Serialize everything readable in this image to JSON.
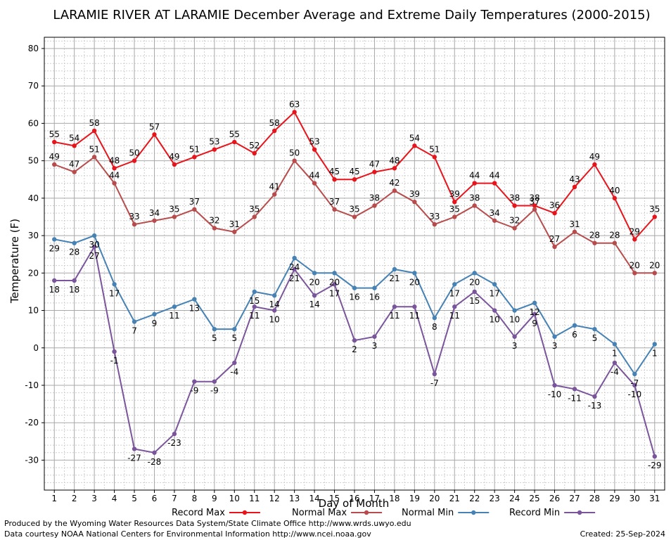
{
  "chart_data": {
    "type": "line",
    "title": "LARAMIE RIVER AT LARAMIE December Average and Extreme Daily Temperatures (2000-2015)",
    "xlabel": "Day of Month",
    "ylabel": "Temperature (F)",
    "ylim": [
      -38,
      83
    ],
    "yticks": [
      -30,
      -20,
      -10,
      0,
      10,
      20,
      30,
      40,
      50,
      60,
      70,
      80
    ],
    "x": [
      1,
      2,
      3,
      4,
      5,
      6,
      7,
      8,
      9,
      10,
      11,
      12,
      13,
      14,
      15,
      16,
      17,
      18,
      19,
      20,
      21,
      22,
      23,
      24,
      25,
      26,
      27,
      28,
      29,
      30,
      31
    ],
    "grid": true,
    "legend_position": "bottom",
    "series": [
      {
        "name": "Record Max",
        "color": "#e8141c",
        "label_position": "above",
        "values": [
          55,
          54,
          58,
          48,
          50,
          57,
          49,
          51,
          53,
          55,
          52,
          58,
          63,
          53,
          45,
          45,
          47,
          48,
          54,
          51,
          39,
          44,
          44,
          38,
          38,
          36,
          43,
          49,
          40,
          29,
          35
        ]
      },
      {
        "name": "Normal Max",
        "color": "#b84c4c",
        "label_position": "above",
        "values": [
          49,
          47,
          51,
          44,
          33,
          34,
          35,
          37,
          32,
          31,
          35,
          41,
          50,
          44,
          37,
          35,
          38,
          42,
          39,
          33,
          35,
          38,
          34,
          32,
          37,
          27,
          31,
          28,
          28,
          20,
          20
        ]
      },
      {
        "name": "Normal Min",
        "color": "#4682b4",
        "label_position": "below",
        "values": [
          29,
          28,
          30,
          17,
          7,
          9,
          11,
          13,
          5,
          5,
          15,
          14,
          24,
          20,
          20,
          16,
          16,
          21,
          20,
          8,
          17,
          20,
          17,
          10,
          12,
          3,
          6,
          5,
          1,
          -7,
          1
        ]
      },
      {
        "name": "Record Min",
        "color": "#7b559c",
        "label_position": "below",
        "values": [
          18,
          18,
          27,
          -1,
          -27,
          -28,
          -23,
          -9,
          -9,
          -4,
          11,
          10,
          21,
          14,
          17,
          2,
          3,
          11,
          11,
          -7,
          11,
          15,
          10,
          3,
          9,
          -10,
          -11,
          -13,
          -4,
          -10,
          -29
        ]
      }
    ]
  },
  "footer": {
    "produced_by": "Produced by the Wyoming Water Resources Data System/State Climate Office http://www.wrds.uwyo.edu",
    "courtesy": "Data courtesy NOAA National Centers for Environmental Information http://www.ncei.noaa.gov",
    "created": "Created:  25-Sep-2024"
  }
}
